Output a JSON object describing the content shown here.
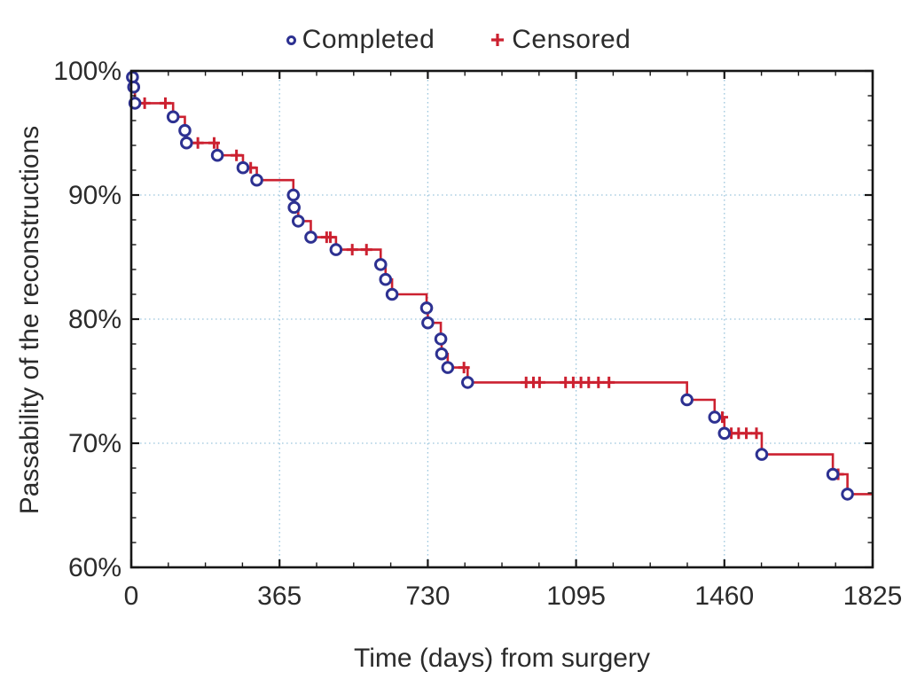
{
  "figure": {
    "legend": {
      "completed_label": "Completed",
      "censored_label": "Censored"
    },
    "y_axis_title": "Passability of the reconstructions",
    "x_axis_title": "Time (days) from surgery"
  },
  "chart_data": {
    "type": "line",
    "variant": "kaplan_meier_step",
    "title": "",
    "xlabel": "Time (days) from surgery",
    "ylabel": "Passability of the reconstructions",
    "xlim": [
      0,
      1825
    ],
    "ylim": [
      60,
      100
    ],
    "x_ticks": [
      0,
      365,
      730,
      1095,
      1460,
      1825
    ],
    "x_tick_labels": [
      "0",
      "365",
      "730",
      "1095",
      "1460",
      "1825"
    ],
    "y_ticks": [
      60,
      70,
      80,
      90,
      100
    ],
    "y_tick_labels": [
      "60%",
      "70%",
      "80%",
      "90%",
      "100%"
    ],
    "x_minor_tick_step_days": 91.25,
    "y_minor_tick_step_pct": 2,
    "grid_on": true,
    "gridlines": {
      "vertical_days": [
        365,
        730,
        1095,
        1460
      ],
      "horizontal_pct": [
        70,
        80,
        90
      ]
    },
    "legend_position": "top-center",
    "legend": [
      {
        "label": "Completed",
        "marker": "circle",
        "color": "#2d3191"
      },
      {
        "label": "Censored",
        "marker": "plus",
        "color": "#cc2130"
      }
    ],
    "curve_start": {
      "day": 0,
      "pct": 99.5
    },
    "series": [
      {
        "name": "Completed",
        "role": "event_steps",
        "points_day_pct": [
          [
            3,
            99.5
          ],
          [
            6,
            98.7
          ],
          [
            9,
            97.4
          ],
          [
            103,
            96.3
          ],
          [
            132,
            95.2
          ],
          [
            136,
            94.2
          ],
          [
            212,
            93.2
          ],
          [
            275,
            92.2
          ],
          [
            309,
            91.2
          ],
          [
            399,
            90.0
          ],
          [
            401,
            89.0
          ],
          [
            411,
            87.9
          ],
          [
            442,
            86.6
          ],
          [
            504,
            85.6
          ],
          [
            614,
            84.4
          ],
          [
            626,
            83.2
          ],
          [
            642,
            82.0
          ],
          [
            727,
            80.9
          ],
          [
            730,
            79.7
          ],
          [
            762,
            78.4
          ],
          [
            764,
            77.2
          ],
          [
            779,
            76.1
          ],
          [
            828,
            74.9
          ],
          [
            1368,
            73.5
          ],
          [
            1436,
            72.1
          ],
          [
            1460,
            70.8
          ],
          [
            1552,
            69.1
          ],
          [
            1727,
            67.5
          ],
          [
            1763,
            65.9
          ]
        ]
      },
      {
        "name": "Censored",
        "role": "censor_marks",
        "points_day_pct": [
          [
            33,
            97.4
          ],
          [
            84,
            97.4
          ],
          [
            164,
            94.2
          ],
          [
            204,
            94.2
          ],
          [
            259,
            93.2
          ],
          [
            294,
            92.2
          ],
          [
            481,
            86.6
          ],
          [
            490,
            86.6
          ],
          [
            544,
            85.6
          ],
          [
            579,
            85.6
          ],
          [
            819,
            76.1
          ],
          [
            972,
            74.9
          ],
          [
            990,
            74.9
          ],
          [
            1005,
            74.9
          ],
          [
            1069,
            74.9
          ],
          [
            1088,
            74.9
          ],
          [
            1107,
            74.9
          ],
          [
            1126,
            74.9
          ],
          [
            1150,
            74.9
          ],
          [
            1176,
            74.9
          ],
          [
            1455,
            72.1
          ],
          [
            1477,
            70.8
          ],
          [
            1495,
            70.8
          ],
          [
            1514,
            70.8
          ],
          [
            1539,
            70.8
          ],
          [
            1740,
            67.5
          ]
        ]
      }
    ],
    "curve_end": {
      "day": 1825,
      "pct": 65.9
    },
    "colors": {
      "step_line": "#cc2130",
      "event_marker_stroke": "#2d3191",
      "event_marker_fill": "#ffffff",
      "censor_marker": "#cc2130",
      "grid": "#9ec7de",
      "axis": "#161616",
      "text": "#2b2b2b"
    }
  }
}
